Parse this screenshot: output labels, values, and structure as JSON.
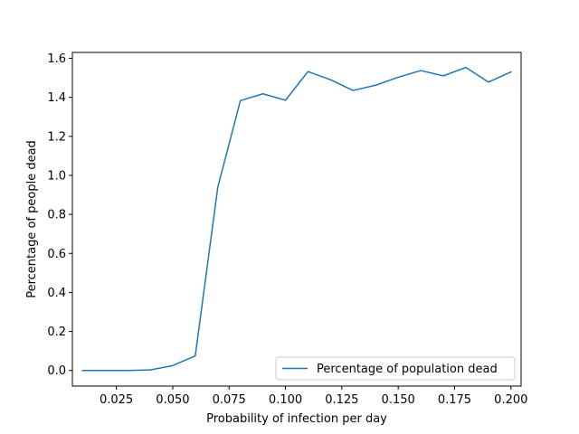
{
  "chart_data": {
    "type": "line",
    "xlabel": "Probability of infection per day",
    "ylabel": "Percentage of people dead",
    "xlim": [
      0.0055,
      0.2045
    ],
    "ylim": [
      -0.08,
      1.63
    ],
    "xticks": [
      0.025,
      0.05,
      0.075,
      0.1,
      0.125,
      0.15,
      0.175,
      0.2
    ],
    "xtick_labels": [
      "0.025",
      "0.050",
      "0.075",
      "0.100",
      "0.125",
      "0.150",
      "0.175",
      "0.200"
    ],
    "yticks": [
      0.0,
      0.2,
      0.4,
      0.6,
      0.8,
      1.0,
      1.2,
      1.4,
      1.6
    ],
    "ytick_labels": [
      "0.0",
      "0.2",
      "0.4",
      "0.6",
      "0.8",
      "1.0",
      "1.2",
      "1.4",
      "1.6"
    ],
    "grid": false,
    "legend_position": "lower-right",
    "series": [
      {
        "name": "Percentage of population dead",
        "color": "#1f77b4",
        "x": [
          0.01,
          0.02,
          0.03,
          0.04,
          0.05,
          0.06,
          0.07,
          0.08,
          0.09,
          0.1,
          0.11,
          0.12,
          0.13,
          0.14,
          0.15,
          0.16,
          0.17,
          0.18,
          0.19,
          0.2
        ],
        "y": [
          0.0,
          0.0,
          0.0,
          0.003,
          0.025,
          0.075,
          0.94,
          1.383,
          1.418,
          1.385,
          1.532,
          1.49,
          1.435,
          1.462,
          1.503,
          1.537,
          1.51,
          1.553,
          1.478,
          1.53
        ]
      }
    ]
  }
}
